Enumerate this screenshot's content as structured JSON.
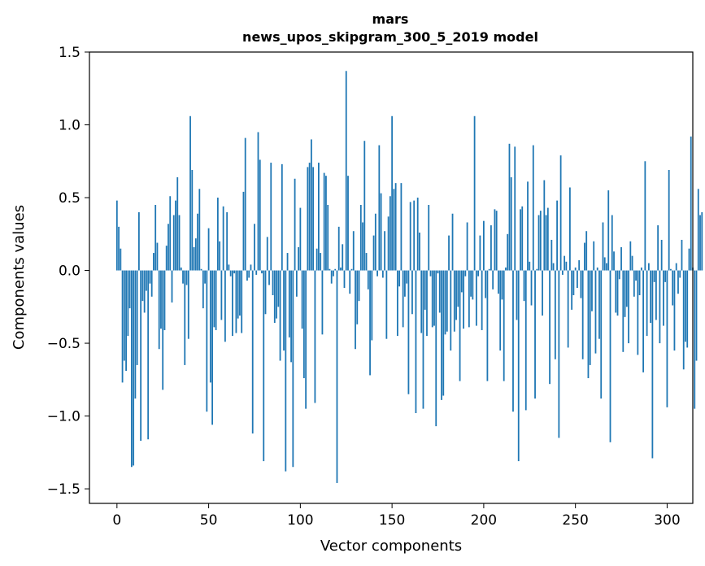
{
  "chart_data": {
    "type": "bar",
    "title": "mars",
    "subtitle": "news_upos_skipgram_300_5_2019 model",
    "xlabel": "Vector components",
    "ylabel": "Components values",
    "xlim": [
      -15,
      314
    ],
    "ylim": [
      -1.6,
      1.5
    ],
    "xticks": [
      0,
      50,
      100,
      150,
      200,
      250,
      300
    ],
    "xtick_labels": [
      "0",
      "50",
      "100",
      "150",
      "200",
      "250",
      "300"
    ],
    "yticks": [
      -1.5,
      -1.0,
      -0.5,
      0.0,
      0.5,
      1.0,
      1.5
    ],
    "ytick_labels": [
      "−1.5",
      "−1.0",
      "−0.5",
      "0.0",
      "0.5",
      "1.0",
      "1.5"
    ],
    "bar_color": "#1f77b4",
    "grid": false,
    "values": [
      0.48,
      0.3,
      0.15,
      -0.77,
      -0.62,
      -0.69,
      -0.45,
      -0.26,
      -1.35,
      -1.34,
      -0.88,
      -0.65,
      0.4,
      -1.17,
      -0.21,
      -0.29,
      -0.14,
      -1.16,
      -0.09,
      -0.18,
      0.12,
      0.45,
      0.19,
      -0.54,
      -0.4,
      -0.82,
      -0.41,
      0.17,
      0.32,
      0.51,
      -0.22,
      0.38,
      0.48,
      0.64,
      0.38,
      0.02,
      -0.09,
      -0.65,
      -0.1,
      -0.47,
      1.06,
      0.69,
      0.16,
      0.22,
      0.39,
      0.56,
      0.01,
      -0.26,
      -0.09,
      -0.97,
      0.29,
      -0.77,
      -1.06,
      -0.39,
      -0.41,
      0.5,
      0.2,
      -0.34,
      0.44,
      -0.49,
      0.4,
      0.04,
      -0.04,
      -0.45,
      -0.02,
      -0.43,
      -0.33,
      -0.31,
      -0.43,
      0.54,
      0.91,
      -0.07,
      -0.05,
      0.04,
      -1.12,
      0.32,
      -0.03,
      0.95,
      0.76,
      -0.02,
      -1.31,
      -0.3,
      0.23,
      -0.1,
      0.74,
      -0.17,
      -0.36,
      -0.33,
      -0.25,
      -0.62,
      0.73,
      -0.55,
      -1.38,
      0.12,
      -0.46,
      -0.63,
      -1.35,
      0.63,
      -0.18,
      0.16,
      0.43,
      -0.4,
      -0.74,
      -0.95,
      0.71,
      0.74,
      0.9,
      0.71,
      -0.91,
      0.15,
      0.74,
      0.12,
      -0.44,
      0.67,
      0.65,
      0.45,
      0.01,
      -0.09,
      -0.04,
      0.01,
      -1.46,
      0.3,
      0.02,
      0.18,
      -0.12,
      1.37,
      0.65,
      -0.16,
      0.01,
      0.27,
      -0.54,
      -0.37,
      -0.21,
      0.45,
      0.33,
      0.89,
      0.12,
      -0.13,
      -0.72,
      -0.48,
      0.24,
      0.39,
      -0.04,
      0.86,
      0.53,
      -0.05,
      0.27,
      -0.47,
      0.37,
      0.51,
      1.06,
      0.56,
      0.6,
      -0.45,
      -0.11,
      0.6,
      -0.39,
      -0.18,
      -0.09,
      -0.85,
      0.47,
      -0.3,
      0.48,
      -0.98,
      0.5,
      0.26,
      -0.43,
      -0.95,
      -0.27,
      -0.45,
      0.45,
      -0.04,
      -0.39,
      -0.38,
      -1.07,
      -0.02,
      -0.29,
      -0.89,
      -0.86,
      -0.44,
      -0.42,
      0.24,
      -0.55,
      0.39,
      -0.42,
      -0.34,
      -0.25,
      -0.76,
      -0.15,
      -0.4,
      -0.04,
      0.33,
      -0.39,
      -0.18,
      -0.2,
      1.06,
      -0.38,
      -0.04,
      0.24,
      -0.41,
      0.34,
      -0.19,
      -0.76,
      0.01,
      0.31,
      -0.13,
      0.42,
      0.41,
      -0.16,
      -0.55,
      -0.2,
      -0.76,
      0.02,
      0.25,
      0.87,
      0.64,
      -0.97,
      0.85,
      -0.34,
      -1.31,
      0.42,
      0.44,
      -0.21,
      -0.96,
      0.61,
      0.06,
      -0.24,
      0.86,
      -0.88,
      0.01,
      0.38,
      0.41,
      -0.31,
      0.62,
      0.38,
      0.43,
      -0.78,
      0.21,
      0.05,
      -0.61,
      0.48,
      -1.15,
      0.79,
      -0.03,
      0.1,
      0.06,
      -0.53,
      0.57,
      -0.27,
      -0.17,
      0.02,
      -0.12,
      0.07,
      -0.19,
      -0.61,
      0.19,
      0.27,
      -0.74,
      -0.65,
      -0.28,
      0.2,
      -0.57,
      0.02,
      -0.47,
      -0.88,
      0.33,
      0.09,
      0.05,
      0.55,
      -1.18,
      0.38,
      0.13,
      -0.29,
      -0.31,
      -0.06,
      0.16,
      -0.56,
      -0.32,
      -0.25,
      -0.5,
      0.2,
      0.1,
      -0.18,
      -0.07,
      -0.58,
      -0.17,
      0.02,
      -0.7,
      0.75,
      -0.45,
      0.05,
      -0.36,
      -1.29,
      -0.08,
      -0.34,
      0.31,
      -0.5,
      0.21,
      -0.38,
      -0.08,
      -0.94,
      0.69,
      0.01,
      -0.24,
      -0.55,
      0.05,
      -0.16,
      -0.05,
      0.21,
      -0.68,
      -0.49,
      -0.53,
      0.15,
      0.92,
      0.02,
      -0.95,
      -0.62,
      0.56,
      0.38,
      0.4
    ]
  }
}
